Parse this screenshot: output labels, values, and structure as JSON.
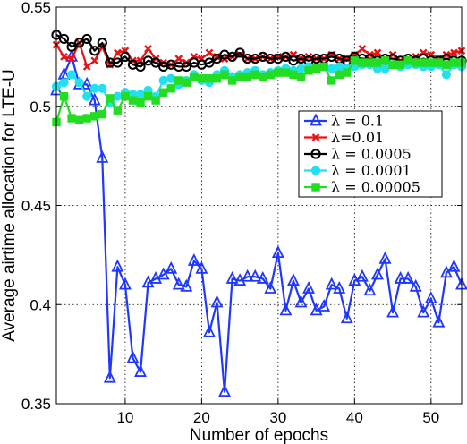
{
  "chart_data": {
    "type": "line",
    "title": "",
    "xlabel": "Number of epochs",
    "ylabel": "Average airtime allocation for LTE-U",
    "xlim": [
      1,
      54
    ],
    "ylim": [
      0.35,
      0.55
    ],
    "xticks": [
      10,
      20,
      30,
      40,
      50
    ],
    "yticks": [
      0.35,
      0.4,
      0.45,
      0.5,
      0.55
    ],
    "xtick_labels": [
      "10",
      "20",
      "30",
      "40",
      "50"
    ],
    "ytick_labels": [
      "0.35",
      "0.4",
      "0.45",
      "0.5",
      "0.55"
    ],
    "grid": true,
    "legend_position": "right, upper-middle",
    "x": [
      1,
      2,
      3,
      4,
      5,
      6,
      7,
      8,
      9,
      10,
      11,
      12,
      13,
      14,
      15,
      16,
      17,
      18,
      19,
      20,
      21,
      22,
      23,
      24,
      25,
      26,
      27,
      28,
      29,
      30,
      31,
      32,
      33,
      34,
      35,
      36,
      37,
      38,
      39,
      40,
      41,
      42,
      43,
      44,
      45,
      46,
      47,
      48,
      49,
      50,
      51,
      52,
      53,
      54
    ],
    "series": [
      {
        "name": "λ = 0.1",
        "color": "#1f37ff",
        "marker": "triangle",
        "values": [
          0.508,
          0.516,
          0.525,
          0.511,
          0.511,
          0.503,
          0.474,
          0.363,
          0.419,
          0.41,
          0.373,
          0.366,
          0.411,
          0.413,
          0.415,
          0.418,
          0.41,
          0.409,
          0.422,
          0.418,
          0.386,
          0.401,
          0.356,
          0.413,
          0.412,
          0.414,
          0.414,
          0.413,
          0.408,
          0.426,
          0.397,
          0.412,
          0.401,
          0.408,
          0.397,
          0.399,
          0.41,
          0.408,
          0.393,
          0.412,
          0.414,
          0.407,
          0.415,
          0.423,
          0.396,
          0.413,
          0.413,
          0.409,
          0.396,
          0.403,
          0.391,
          0.416,
          0.419,
          0.41
        ]
      },
      {
        "name": "λ=0.01",
        "color": "#ee1111",
        "marker": "x",
        "values": [
          0.531,
          0.525,
          0.524,
          0.532,
          0.52,
          0.523,
          0.53,
          0.521,
          0.527,
          0.528,
          0.523,
          0.523,
          0.529,
          0.524,
          0.522,
          0.521,
          0.524,
          0.522,
          0.525,
          0.524,
          0.527,
          0.525,
          0.524,
          0.525,
          0.526,
          0.524,
          0.524,
          0.525,
          0.524,
          0.525,
          0.525,
          0.526,
          0.524,
          0.525,
          0.524,
          0.524,
          0.526,
          0.524,
          0.524,
          0.526,
          0.529,
          0.526,
          0.527,
          0.524,
          0.526,
          0.523,
          0.524,
          0.525,
          0.527,
          0.526,
          0.524,
          0.526,
          0.527,
          0.528
        ]
      },
      {
        "name": "λ = 0.0005",
        "color": "#000000",
        "marker": "circle",
        "values": [
          0.536,
          0.534,
          0.53,
          0.532,
          0.534,
          0.528,
          0.532,
          0.522,
          0.522,
          0.525,
          0.521,
          0.52,
          0.523,
          0.522,
          0.52,
          0.521,
          0.52,
          0.52,
          0.522,
          0.521,
          0.522,
          0.524,
          0.526,
          0.525,
          0.527,
          0.524,
          0.524,
          0.525,
          0.524,
          0.524,
          0.525,
          0.523,
          0.524,
          0.523,
          0.524,
          0.524,
          0.525,
          0.524,
          0.523,
          0.525,
          0.524,
          0.524,
          0.523,
          0.524,
          0.524,
          0.523,
          0.524,
          0.523,
          0.524,
          0.523,
          0.523,
          0.524,
          0.523,
          0.523
        ]
      },
      {
        "name": "λ = 0.0001",
        "color": "#22e0f0",
        "marker": "circle-filled",
        "values": [
          0.51,
          0.512,
          0.516,
          0.512,
          0.505,
          0.509,
          0.509,
          0.502,
          0.505,
          0.507,
          0.506,
          0.506,
          0.508,
          0.505,
          0.513,
          0.514,
          0.511,
          0.513,
          0.516,
          0.513,
          0.512,
          0.516,
          0.518,
          0.515,
          0.516,
          0.517,
          0.518,
          0.516,
          0.517,
          0.518,
          0.519,
          0.518,
          0.519,
          0.52,
          0.519,
          0.52,
          0.519,
          0.52,
          0.519,
          0.52,
          0.521,
          0.521,
          0.519,
          0.519,
          0.521,
          0.52,
          0.521,
          0.521,
          0.52,
          0.52,
          0.521,
          0.516,
          0.521,
          0.52
        ]
      },
      {
        "name": "λ = 0.00005",
        "color": "#22dd22",
        "marker": "square",
        "values": [
          0.492,
          0.505,
          0.494,
          0.493,
          0.494,
          0.495,
          0.496,
          0.504,
          0.498,
          0.505,
          0.503,
          0.502,
          0.505,
          0.503,
          0.507,
          0.509,
          0.513,
          0.512,
          0.515,
          0.514,
          0.514,
          0.514,
          0.516,
          0.513,
          0.515,
          0.515,
          0.516,
          0.515,
          0.516,
          0.517,
          0.517,
          0.516,
          0.515,
          0.518,
          0.519,
          0.52,
          0.513,
          0.516,
          0.517,
          0.523,
          0.522,
          0.522,
          0.522,
          0.523,
          0.521,
          0.521,
          0.523,
          0.522,
          0.522,
          0.522,
          0.522,
          0.521,
          0.522,
          0.522
        ]
      }
    ]
  }
}
